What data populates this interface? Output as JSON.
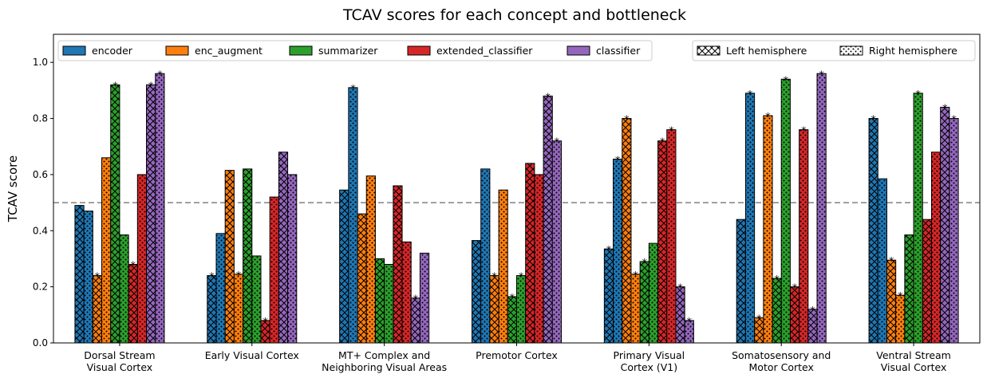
{
  "chart_data": {
    "type": "bar",
    "title": "TCAV scores for each concept and bottleneck",
    "xlabel": "",
    "ylabel": "TCAV score",
    "ylim": [
      0,
      1.1
    ],
    "yticks": [
      0.0,
      0.2,
      0.4,
      0.6,
      0.8,
      1.0
    ],
    "yticklabels": [
      "0.0",
      "0.2",
      "0.4",
      "0.6",
      "0.8",
      "1.0"
    ],
    "reference_line": 0.5,
    "grid": false,
    "legend_placement": "top",
    "categories": [
      [
        "Dorsal Stream",
        "Visual Cortex"
      ],
      [
        "Early Visual Cortex"
      ],
      [
        "MT+ Complex and",
        "Neighboring Visual Areas"
      ],
      [
        "Premotor Cortex"
      ],
      [
        "Primary Visual",
        "Cortex (V1)"
      ],
      [
        "Somatosensory and",
        "Motor Cortex"
      ],
      [
        "Ventral Stream",
        "Visual Cortex"
      ]
    ],
    "hemispheres": [
      {
        "name": "Left hemisphere",
        "pattern": "crosshatch"
      },
      {
        "name": "Right hemisphere",
        "pattern": "dots"
      }
    ],
    "significance_marker": "*",
    "series": [
      {
        "name": "encoder",
        "color": "#1f77b4",
        "left": [
          0.49,
          0.24,
          0.545,
          0.365,
          0.335,
          0.44,
          0.8
        ],
        "right": [
          0.47,
          0.39,
          0.91,
          0.62,
          0.655,
          0.89,
          0.585
        ],
        "left_sig": [
          false,
          true,
          false,
          false,
          true,
          false,
          true
        ],
        "right_sig": [
          false,
          false,
          true,
          false,
          true,
          true,
          false
        ]
      },
      {
        "name": "enc_augment",
        "color": "#ff7f0e",
        "left": [
          0.24,
          0.615,
          0.46,
          0.24,
          0.8,
          0.09,
          0.295
        ],
        "right": [
          0.66,
          0.245,
          0.595,
          0.545,
          0.245,
          0.81,
          0.17
        ],
        "left_sig": [
          true,
          false,
          false,
          true,
          true,
          true,
          true
        ],
        "right_sig": [
          false,
          true,
          false,
          false,
          true,
          true,
          true
        ]
      },
      {
        "name": "summarizer",
        "color": "#2ca02c",
        "left": [
          0.92,
          0.62,
          0.3,
          0.165,
          0.29,
          0.23,
          0.385
        ],
        "right": [
          0.385,
          0.31,
          0.28,
          0.24,
          0.355,
          0.94,
          0.89
        ],
        "left_sig": [
          true,
          false,
          false,
          true,
          true,
          true,
          false
        ],
        "right_sig": [
          false,
          false,
          false,
          true,
          false,
          true,
          true
        ]
      },
      {
        "name": "extended_classifier",
        "color": "#d62728",
        "left": [
          0.28,
          0.08,
          0.56,
          0.64,
          0.72,
          0.2,
          0.44
        ],
        "right": [
          0.6,
          0.52,
          0.36,
          0.6,
          0.76,
          0.76,
          0.68
        ],
        "left_sig": [
          true,
          true,
          false,
          false,
          true,
          true,
          false
        ],
        "right_sig": [
          false,
          false,
          false,
          false,
          true,
          true,
          false
        ]
      },
      {
        "name": "classifier",
        "color": "#9467bd",
        "left": [
          0.92,
          0.68,
          0.16,
          0.88,
          0.2,
          0.12,
          0.84
        ],
        "right": [
          0.96,
          0.6,
          0.32,
          0.72,
          0.08,
          0.96,
          0.8
        ],
        "left_sig": [
          true,
          false,
          true,
          true,
          true,
          true,
          true
        ],
        "right_sig": [
          true,
          false,
          false,
          true,
          true,
          true,
          true
        ]
      }
    ]
  }
}
